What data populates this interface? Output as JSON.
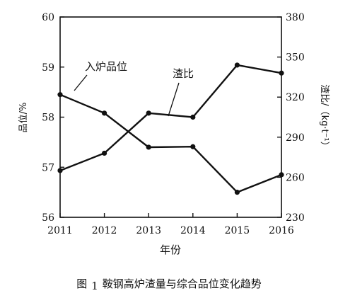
{
  "chart_data": {
    "type": "line",
    "x": [
      "2011",
      "2012",
      "2013",
      "2014",
      "2015",
      "2016"
    ],
    "xlabel": "年份",
    "ylabel_left": "品位/%",
    "ylabel_right": "渣比/（kg·t⁻¹）",
    "ylim_left": [
      56,
      60
    ],
    "ylim_right": [
      230,
      380
    ],
    "yticks_left": [
      "56",
      "57",
      "58",
      "59",
      "60"
    ],
    "yticks_right": [
      "230",
      "260",
      "290",
      "320",
      "350",
      "380"
    ],
    "grid": false,
    "series": [
      {
        "name": "入炉品位",
        "axis": "left",
        "values": [
          58.45,
          58.08,
          57.4,
          57.41,
          56.5,
          56.85
        ]
      },
      {
        "name": "渣比",
        "axis": "right",
        "values": [
          265,
          278,
          308,
          305,
          344,
          338
        ]
      }
    ]
  },
  "caption": {
    "prefix": "图",
    "number": "1",
    "text": "鞍钢高炉渣量与综合品位变化趋势"
  }
}
